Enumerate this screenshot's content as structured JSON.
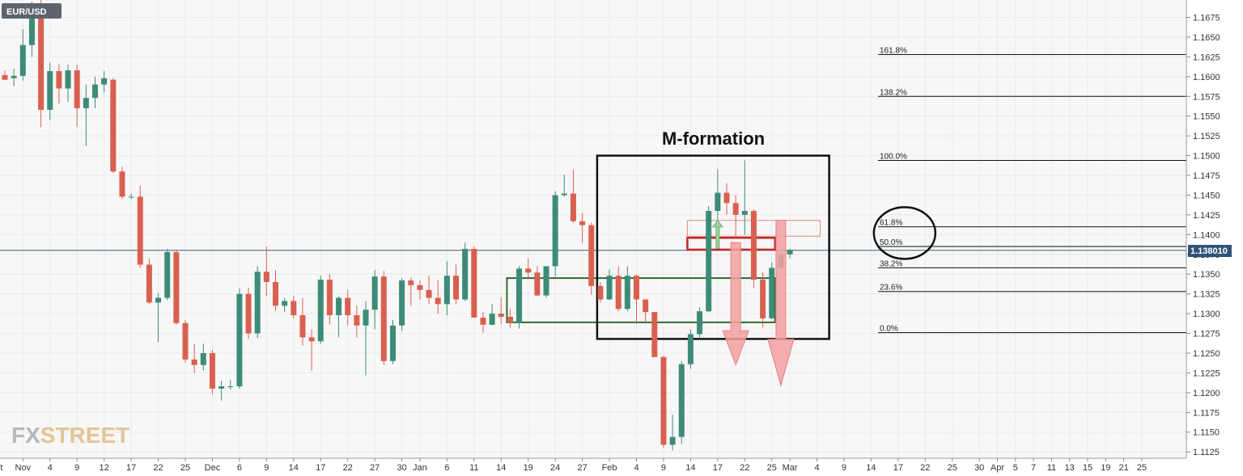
{
  "symbol": "EUR/USD",
  "watermark": {
    "part1": "FX",
    "part2": "STREET"
  },
  "colors": {
    "up": "#3d8b78",
    "down": "#d9604f",
    "grid": "#eaeaea",
    "price_line": "#3a5a80",
    "fib_line": "#111111",
    "box_black": "#111111",
    "box_green": "#2e6b2e",
    "box_red": "#c0282b",
    "arrow_red": "#f2a0a0",
    "arrow_green": "#9fd09f",
    "logo1": "#b8b8b8",
    "logo2": "#e3c595"
  },
  "chart_data": {
    "type": "candlestick",
    "title": "EUR/USD",
    "ylim": [
      1.1117,
      1.1697
    ],
    "y_ticks": [
      "1.1675",
      "1.1650",
      "1.1625",
      "1.1600",
      "1.1575",
      "1.1550",
      "1.1525",
      "1.1500",
      "1.1475",
      "1.1450",
      "1.1425",
      "1.1400",
      "1.1375",
      "1.1350",
      "1.1325",
      "1.1300",
      "1.1275",
      "1.1250",
      "1.1225",
      "1.1200",
      "1.1175",
      "1.1150",
      "1.1125"
    ],
    "x_ticks": [
      {
        "label": "Oct",
        "bar": -1
      },
      {
        "label": "Nov",
        "bar": 2
      },
      {
        "label": "4",
        "bar": 5
      },
      {
        "label": "9",
        "bar": 8
      },
      {
        "label": "12",
        "bar": 11
      },
      {
        "label": "17",
        "bar": 14
      },
      {
        "label": "22",
        "bar": 17
      },
      {
        "label": "25",
        "bar": 20
      },
      {
        "label": "Dec",
        "bar": 23
      },
      {
        "label": "6",
        "bar": 26
      },
      {
        "label": "9",
        "bar": 29
      },
      {
        "label": "14",
        "bar": 32
      },
      {
        "label": "17",
        "bar": 35
      },
      {
        "label": "22",
        "bar": 38
      },
      {
        "label": "27",
        "bar": 41
      },
      {
        "label": "30",
        "bar": 44
      },
      {
        "label": "Jan",
        "bar": 46
      },
      {
        "label": "6",
        "bar": 49
      },
      {
        "label": "11",
        "bar": 52
      },
      {
        "label": "14",
        "bar": 55
      },
      {
        "label": "19",
        "bar": 58
      },
      {
        "label": "24",
        "bar": 61
      },
      {
        "label": "27",
        "bar": 64
      },
      {
        "label": "Feb",
        "bar": 67
      },
      {
        "label": "4",
        "bar": 70
      },
      {
        "label": "9",
        "bar": 73
      },
      {
        "label": "14",
        "bar": 76
      },
      {
        "label": "17",
        "bar": 79
      },
      {
        "label": "22",
        "bar": 82
      },
      {
        "label": "25",
        "bar": 85
      },
      {
        "label": "Mar",
        "bar": 87
      },
      {
        "label": "4",
        "bar": 90
      },
      {
        "label": "9",
        "bar": 93
      },
      {
        "label": "14",
        "bar": 96
      },
      {
        "label": "17",
        "bar": 99
      },
      {
        "label": "22",
        "bar": 102
      },
      {
        "label": "25",
        "bar": 105
      },
      {
        "label": "30",
        "bar": 108
      },
      {
        "label": "Apr",
        "bar": 110
      },
      {
        "label": "5",
        "bar": 112
      },
      {
        "label": "7",
        "bar": 114
      },
      {
        "label": "11",
        "bar": 116
      },
      {
        "label": "13",
        "bar": 118
      },
      {
        "label": "15",
        "bar": 120
      },
      {
        "label": "19",
        "bar": 122
      },
      {
        "label": "21",
        "bar": 124
      },
      {
        "label": "25",
        "bar": 126
      }
    ],
    "current_price": {
      "label": "1.138010",
      "value": 1.13801
    },
    "candles": [
      [
        1.1602,
        1.1608,
        1.1596,
        1.1596
      ],
      [
        1.1598,
        1.161,
        1.1588,
        1.1601
      ],
      [
        1.1601,
        1.166,
        1.1595,
        1.164
      ],
      [
        1.164,
        1.1695,
        1.1625,
        1.169
      ],
      [
        1.169,
        1.1697,
        1.1536,
        1.1558
      ],
      [
        1.1558,
        1.1618,
        1.1545,
        1.1607
      ],
      [
        1.1607,
        1.1616,
        1.1566,
        1.1585
      ],
      [
        1.1585,
        1.1615,
        1.1568,
        1.1608
      ],
      [
        1.1608,
        1.1615,
        1.1536,
        1.156
      ],
      [
        1.156,
        1.159,
        1.1512,
        1.1573
      ],
      [
        1.1573,
        1.16,
        1.156,
        1.159
      ],
      [
        1.159,
        1.1607,
        1.158,
        1.1598
      ],
      [
        1.1596,
        1.1598,
        1.1478,
        1.148
      ],
      [
        1.148,
        1.1486,
        1.1445,
        1.1448
      ],
      [
        1.1448,
        1.1452,
        1.1445,
        1.1448
      ],
      [
        1.1448,
        1.1462,
        1.1358,
        1.1362
      ],
      [
        1.1362,
        1.137,
        1.1312,
        1.1314
      ],
      [
        1.1314,
        1.1326,
        1.1264,
        1.132
      ],
      [
        1.132,
        1.1382,
        1.1317,
        1.1378
      ],
      [
        1.1378,
        1.138,
        1.1286,
        1.1288
      ],
      [
        1.1288,
        1.1292,
        1.1238,
        1.1242
      ],
      [
        1.1242,
        1.1262,
        1.1225,
        1.1235
      ],
      [
        1.1235,
        1.1262,
        1.1228,
        1.125
      ],
      [
        1.125,
        1.1254,
        1.1198,
        1.1205
      ],
      [
        1.1205,
        1.1215,
        1.119,
        1.1208
      ],
      [
        1.1208,
        1.1216,
        1.1204,
        1.1208
      ],
      [
        1.1208,
        1.1332,
        1.1205,
        1.1325
      ],
      [
        1.1325,
        1.1333,
        1.1268,
        1.1275
      ],
      [
        1.1275,
        1.136,
        1.1269,
        1.1353
      ],
      [
        1.1353,
        1.1385,
        1.1322,
        1.134
      ],
      [
        1.134,
        1.1355,
        1.1303,
        1.131
      ],
      [
        1.131,
        1.132,
        1.1302,
        1.1316
      ],
      [
        1.1316,
        1.1323,
        1.1294,
        1.1298
      ],
      [
        1.1298,
        1.132,
        1.126,
        1.127
      ],
      [
        1.127,
        1.128,
        1.1228,
        1.1265
      ],
      [
        1.1265,
        1.1348,
        1.1262,
        1.1343
      ],
      [
        1.1343,
        1.135,
        1.1286,
        1.1298
      ],
      [
        1.1298,
        1.1322,
        1.127,
        1.132
      ],
      [
        1.132,
        1.133,
        1.1285,
        1.1298
      ],
      [
        1.1298,
        1.131,
        1.127,
        1.1285
      ],
      [
        1.1285,
        1.1316,
        1.1222,
        1.1305
      ],
      [
        1.1305,
        1.1355,
        1.128,
        1.1347
      ],
      [
        1.1347,
        1.1354,
        1.1235,
        1.124
      ],
      [
        1.124,
        1.1292,
        1.1236,
        1.1285
      ],
      [
        1.1285,
        1.1345,
        1.1278,
        1.1342
      ],
      [
        1.1342,
        1.1346,
        1.131,
        1.1336
      ],
      [
        1.1336,
        1.1342,
        1.1318,
        1.133
      ],
      [
        1.133,
        1.1348,
        1.1312,
        1.132
      ],
      [
        1.132,
        1.1342,
        1.13,
        1.1312
      ],
      [
        1.1312,
        1.1366,
        1.1298,
        1.1348
      ],
      [
        1.1348,
        1.1362,
        1.1312,
        1.1318
      ],
      [
        1.1318,
        1.139,
        1.1316,
        1.1382
      ],
      [
        1.1382,
        1.1385,
        1.1296,
        1.1295
      ],
      [
        1.1295,
        1.1302,
        1.1276,
        1.1286
      ],
      [
        1.1286,
        1.1312,
        1.1285,
        1.13
      ],
      [
        1.13,
        1.1321,
        1.1287,
        1.1296
      ],
      [
        1.1296,
        1.1306,
        1.1282,
        1.1288
      ],
      [
        1.1288,
        1.136,
        1.1281,
        1.1357
      ],
      [
        1.1357,
        1.137,
        1.1345,
        1.1352
      ],
      [
        1.1352,
        1.136,
        1.1322,
        1.1323
      ],
      [
        1.1323,
        1.136,
        1.132,
        1.136
      ],
      [
        1.136,
        1.1455,
        1.1347,
        1.145
      ],
      [
        1.145,
        1.1476,
        1.1448,
        1.1452
      ],
      [
        1.1452,
        1.1482,
        1.1415,
        1.1417
      ],
      [
        1.1417,
        1.1427,
        1.139,
        1.1412
      ],
      [
        1.1412,
        1.1415,
        1.1324,
        1.1335
      ],
      [
        1.1335,
        1.134,
        1.1314,
        1.1318
      ],
      [
        1.1318,
        1.1356,
        1.1317,
        1.1348
      ],
      [
        1.1348,
        1.136,
        1.1303,
        1.1306
      ],
      [
        1.1306,
        1.136,
        1.1303,
        1.1348
      ],
      [
        1.1348,
        1.135,
        1.1287,
        1.1318
      ],
      [
        1.1318,
        1.1318,
        1.1287,
        1.1302
      ],
      [
        1.1302,
        1.1302,
        1.1245,
        1.1245
      ],
      [
        1.1245,
        1.1247,
        1.113,
        1.1134
      ],
      [
        1.1134,
        1.1172,
        1.1127,
        1.1144
      ],
      [
        1.1144,
        1.124,
        1.1135,
        1.1236
      ],
      [
        1.1236,
        1.128,
        1.123,
        1.1274
      ],
      [
        1.1274,
        1.1308,
        1.1268,
        1.1303
      ],
      [
        1.1303,
        1.1436,
        1.1302,
        1.143
      ],
      [
        1.143,
        1.1483,
        1.141,
        1.1453
      ],
      [
        1.1453,
        1.1465,
        1.1425,
        1.144
      ],
      [
        1.144,
        1.145,
        1.1395,
        1.1425
      ],
      [
        1.1425,
        1.1494,
        1.14,
        1.143
      ],
      [
        1.143,
        1.1432,
        1.1332,
        1.1343
      ],
      [
        1.1343,
        1.1353,
        1.1282,
        1.1294
      ],
      [
        1.1294,
        1.1365,
        1.1293,
        1.1358
      ],
      [
        1.1358,
        1.1376,
        1.1358,
        1.1375
      ],
      [
        1.1375,
        1.1382,
        1.137,
        1.138
      ]
    ],
    "fib_levels": [
      {
        "label": "161.8%",
        "value": 1.1628
      },
      {
        "label": "138.2%",
        "value": 1.1575
      },
      {
        "label": "100.0%",
        "value": 1.1494
      },
      {
        "label": "61.8%",
        "value": 1.141
      },
      {
        "label": "50.0%",
        "value": 1.1385
      },
      {
        "label": "38.2%",
        "value": 1.1358
      },
      {
        "label": "23.6%",
        "value": 1.1328
      },
      {
        "label": "0.0%",
        "value": 1.1276
      }
    ],
    "annotations": {
      "title": "M-formation",
      "formation_box": {
        "start_bar": 66,
        "end_bar": 91,
        "top": 1.15,
        "bottom": 1.1268
      },
      "green_zone": {
        "start_bar": 56,
        "end_bar": 85,
        "top": 1.1345,
        "bottom": 1.1289
      },
      "red_zone": {
        "start_bar": 76,
        "end_bar": 85,
        "top": 1.1396,
        "bottom": 1.1381
      },
      "light_red_zone": {
        "start_bar": 76,
        "end_bar": 90,
        "top": 1.1418,
        "bottom": 1.1398
      },
      "arrow_down_1": {
        "bar": 81,
        "from": 1.139,
        "to": 1.1235
      },
      "arrow_down_2": {
        "bar": 86,
        "from": 1.1418,
        "to": 1.1209
      },
      "arrow_up": {
        "bar": 79,
        "from": 1.1383,
        "to": 1.1418
      },
      "circle": {
        "bar": 99,
        "value": 1.1402
      }
    }
  }
}
